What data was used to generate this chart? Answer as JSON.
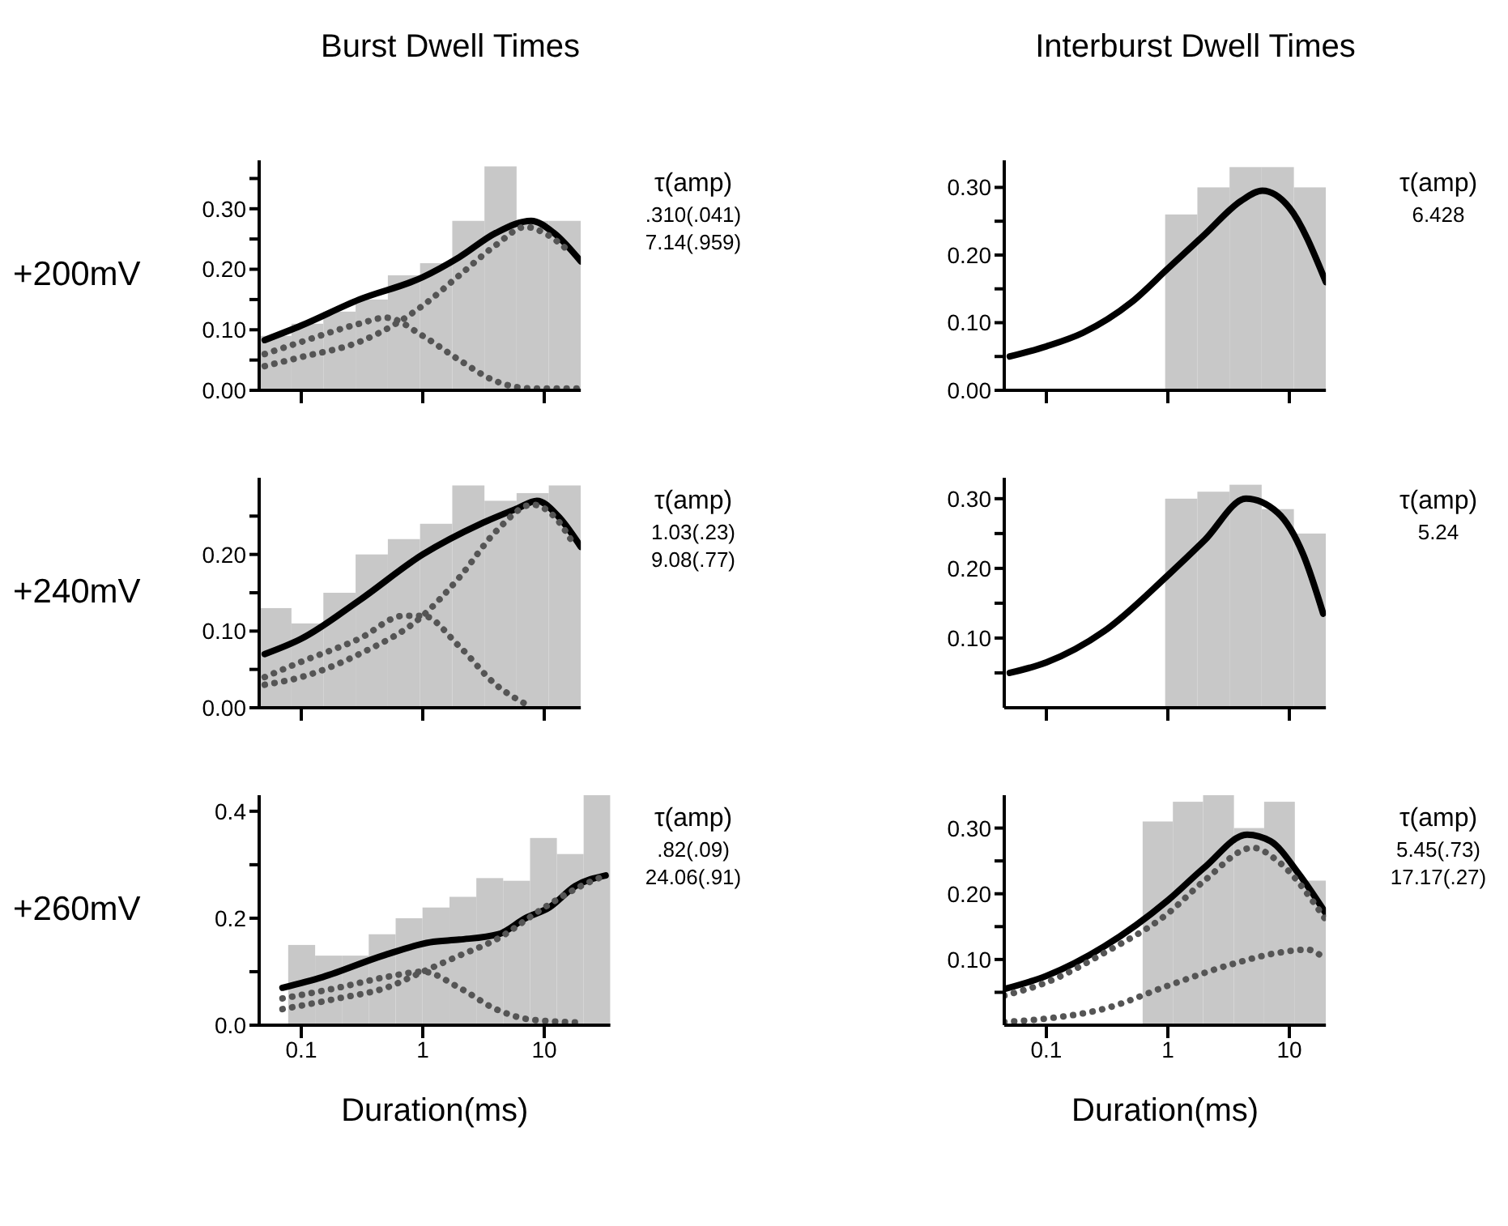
{
  "chart_data": [
    {
      "type": "histogram",
      "title": "Burst Dwell Times",
      "ylabel": "+200mV",
      "log": "x",
      "tick_labels": "y",
      "color": "#c8c8c8",
      "bins": [
        0.045,
        0.083,
        0.152,
        0.28,
        0.516,
        0.95,
        1.75,
        3.22,
        5.92,
        10.9,
        20
      ],
      "values": [
        0.09,
        0.11,
        0.13,
        0.15,
        0.19,
        0.21,
        0.28,
        0.37,
        0.28,
        0.28
      ],
      "series": [
        {
          "type": "line",
          "line_style": "solid",
          "color": "#000000",
          "x": [
            0.05,
            0.1,
            0.3,
            1,
            2,
            4,
            7.8,
            12,
            20
          ],
          "values": [
            0.083,
            0.107,
            0.15,
            0.187,
            0.22,
            0.26,
            0.28,
            0.26,
            0.213
          ]
        },
        {
          "type": "line",
          "line_style": "dotted",
          "color": "#555555",
          "x": [
            0.05,
            0.1,
            0.3,
            0.5,
            1,
            2,
            4,
            8,
            20
          ],
          "values": [
            0.06,
            0.08,
            0.11,
            0.12,
            0.09,
            0.05,
            0.015,
            0.003,
            0.003
          ]
        },
        {
          "type": "line",
          "line_style": "dotted",
          "color": "#555555",
          "x": [
            0.05,
            0.1,
            0.3,
            0.6,
            1,
            2,
            4,
            7,
            10,
            16
          ],
          "values": [
            0.04,
            0.055,
            0.08,
            0.11,
            0.14,
            0.19,
            0.24,
            0.27,
            0.26,
            0.23
          ]
        }
      ],
      "xlim": [
        0.045,
        20
      ],
      "xticks": [
        {
          "value": 0.1,
          "label": null
        },
        {
          "value": 1,
          "label": null
        },
        {
          "value": 10,
          "label": null
        }
      ],
      "ylim": [
        0,
        0.38
      ],
      "yticks": [
        {
          "value": 0,
          "label": "0.00"
        },
        {
          "value": 0.05,
          "label": null
        },
        {
          "value": 0.1,
          "label": "0.10"
        },
        {
          "value": 0.15,
          "label": null
        },
        {
          "value": 0.2,
          "label": "0.20"
        },
        {
          "value": 0.25,
          "label": null
        },
        {
          "value": 0.3,
          "label": "0.30"
        },
        {
          "value": 0.35,
          "label": null
        }
      ],
      "annotations": [
        "τ(amp)",
        ".310(.041)",
        "7.14(.959)"
      ]
    },
    {
      "type": "histogram",
      "title": "Interburst Dwell Times",
      "log": "x",
      "tick_labels": "y",
      "color": "#c8c8c8",
      "bins": [
        0.045,
        0.083,
        0.152,
        0.28,
        0.516,
        0.95,
        1.75,
        3.22,
        5.92,
        10.9,
        20
      ],
      "values": [
        0,
        0,
        0,
        0,
        0,
        0.26,
        0.3,
        0.33,
        0.33,
        0.3
      ],
      "series": [
        {
          "type": "line",
          "line_style": "solid",
          "color": "#000000",
          "x": [
            0.05,
            0.1,
            0.2,
            0.5,
            1,
            2,
            4,
            6,
            10,
            20
          ],
          "values": [
            0.05,
            0.065,
            0.085,
            0.13,
            0.18,
            0.23,
            0.28,
            0.295,
            0.27,
            0.16
          ]
        }
      ],
      "xlim": [
        0.045,
        20
      ],
      "xticks": [
        {
          "value": 0.1,
          "label": null
        },
        {
          "value": 1,
          "label": null
        },
        {
          "value": 10,
          "label": null
        }
      ],
      "ylim": [
        0,
        0.34
      ],
      "yticks": [
        {
          "value": 0,
          "label": "0.00"
        },
        {
          "value": 0.05,
          "label": null
        },
        {
          "value": 0.1,
          "label": "0.10"
        },
        {
          "value": 0.15,
          "label": null
        },
        {
          "value": 0.2,
          "label": "0.20"
        },
        {
          "value": 0.25,
          "label": null
        },
        {
          "value": 0.3,
          "label": "0.30"
        }
      ],
      "annotations": [
        "τ(amp)",
        "6.428"
      ]
    },
    {
      "type": "histogram",
      "ylabel": "+240mV",
      "log": "x",
      "tick_labels": "y",
      "color": "#c8c8c8",
      "bins": [
        0.045,
        0.083,
        0.152,
        0.28,
        0.516,
        0.95,
        1.75,
        3.22,
        5.92,
        10.9,
        20
      ],
      "values": [
        0.13,
        0.11,
        0.15,
        0.2,
        0.22,
        0.24,
        0.29,
        0.27,
        0.28,
        0.29
      ],
      "series": [
        {
          "type": "line",
          "line_style": "solid",
          "color": "#000000",
          "x": [
            0.05,
            0.1,
            0.3,
            1,
            3,
            6,
            8.7,
            13,
            20
          ],
          "values": [
            0.07,
            0.09,
            0.14,
            0.2,
            0.24,
            0.26,
            0.27,
            0.25,
            0.21
          ]
        },
        {
          "type": "line",
          "line_style": "dotted",
          "color": "#555555",
          "x": [
            0.05,
            0.1,
            0.3,
            0.7,
            1,
            2,
            4,
            7
          ],
          "values": [
            0.04,
            0.06,
            0.09,
            0.12,
            0.12,
            0.08,
            0.03,
            0.005
          ]
        },
        {
          "type": "line",
          "line_style": "dotted",
          "color": "#555555",
          "x": [
            0.05,
            0.1,
            0.3,
            1,
            2,
            4,
            8,
            12,
            18
          ],
          "values": [
            0.03,
            0.04,
            0.07,
            0.12,
            0.17,
            0.23,
            0.265,
            0.25,
            0.21
          ]
        }
      ],
      "xlim": [
        0.045,
        20
      ],
      "xticks": [
        {
          "value": 0.1,
          "label": null
        },
        {
          "value": 1,
          "label": null
        },
        {
          "value": 10,
          "label": null
        }
      ],
      "ylim": [
        0,
        0.3
      ],
      "yticks": [
        {
          "value": 0,
          "label": "0.00"
        },
        {
          "value": 0.05,
          "label": null
        },
        {
          "value": 0.1,
          "label": "0.10"
        },
        {
          "value": 0.15,
          "label": null
        },
        {
          "value": 0.2,
          "label": "0.20"
        },
        {
          "value": 0.25,
          "label": null
        }
      ],
      "annotations": [
        "τ(amp)",
        "1.03(.23)",
        "9.08(.77)"
      ]
    },
    {
      "type": "histogram",
      "log": "x",
      "tick_labels": "y",
      "color": "#c8c8c8",
      "bins": [
        0.045,
        0.083,
        0.152,
        0.28,
        0.516,
        0.95,
        1.75,
        3.22,
        5.92,
        10.9,
        20
      ],
      "values": [
        0,
        0,
        0,
        0,
        0,
        0.3,
        0.31,
        0.32,
        0.285,
        0.25
      ],
      "series": [
        {
          "type": "line",
          "line_style": "solid",
          "color": "#000000",
          "x": [
            0.05,
            0.1,
            0.3,
            1,
            2,
            4.4,
            8,
            13,
            19
          ],
          "values": [
            0.05,
            0.065,
            0.11,
            0.19,
            0.24,
            0.3,
            0.28,
            0.22,
            0.135
          ]
        }
      ],
      "xlim": [
        0.045,
        20
      ],
      "xticks": [
        {
          "value": 0.1,
          "label": null
        },
        {
          "value": 1,
          "label": null
        },
        {
          "value": 10,
          "label": null
        }
      ],
      "ylim": [
        0,
        0.33
      ],
      "yticks": [
        {
          "value": 0.05,
          "label": null
        },
        {
          "value": 0.1,
          "label": "0.10"
        },
        {
          "value": 0.15,
          "label": null
        },
        {
          "value": 0.2,
          "label": "0.20"
        },
        {
          "value": 0.25,
          "label": null
        },
        {
          "value": 0.3,
          "label": "0.30"
        }
      ],
      "annotations": [
        "τ(amp)",
        "5.24"
      ]
    },
    {
      "type": "histogram",
      "ylabel": "+260mV",
      "xlabel": "Duration(ms)",
      "log": "x",
      "color": "#c8c8c8",
      "bins": [
        0.078,
        0.13,
        0.216,
        0.359,
        0.598,
        0.995,
        1.66,
        2.76,
        4.59,
        7.64,
        12.7,
        21.1,
        35
      ],
      "values": [
        0.15,
        0.13,
        0.13,
        0.17,
        0.2,
        0.22,
        0.24,
        0.275,
        0.27,
        0.35,
        0.32,
        0.43
      ],
      "series": [
        {
          "type": "line",
          "line_style": "solid",
          "color": "#000000",
          "x": [
            0.07,
            0.15,
            0.47,
            1.15,
            2,
            4.2,
            7,
            11,
            18,
            32
          ],
          "values": [
            0.07,
            0.09,
            0.13,
            0.155,
            0.16,
            0.17,
            0.2,
            0.22,
            0.26,
            0.28
          ]
        },
        {
          "type": "line",
          "line_style": "dotted",
          "color": "#555555",
          "x": [
            0.07,
            0.2,
            0.5,
            1,
            2,
            4,
            8,
            20
          ],
          "values": [
            0.05,
            0.07,
            0.09,
            0.1,
            0.07,
            0.03,
            0.01,
            0.005
          ]
        },
        {
          "type": "line",
          "line_style": "dotted",
          "color": "#555555",
          "x": [
            0.07,
            0.2,
            0.5,
            1,
            2,
            4,
            10,
            20,
            32
          ],
          "values": [
            0.03,
            0.05,
            0.07,
            0.1,
            0.13,
            0.16,
            0.22,
            0.26,
            0.28
          ]
        }
      ],
      "xlim": [
        0.045,
        35
      ],
      "xticks": [
        0.1,
        1,
        10
      ],
      "ylim": [
        0,
        0.43
      ],
      "yticks": [
        {
          "value": 0,
          "label": "0.0"
        },
        {
          "value": 0.1,
          "label": null
        },
        {
          "value": 0.2,
          "label": "0.2"
        },
        {
          "value": 0.3,
          "label": null
        },
        {
          "value": 0.4,
          "label": "0.4"
        }
      ],
      "annotations": [
        "τ(amp)",
        ".82(.09)",
        "24.06(.91)"
      ]
    },
    {
      "type": "histogram",
      "xlabel": "Duration(ms)",
      "log": "x",
      "color": "#c8c8c8",
      "bins": [
        0.62,
        1.1,
        1.95,
        3.5,
        6.2,
        11.1,
        20
      ],
      "values": [
        0.31,
        0.34,
        0.35,
        0.3,
        0.34,
        0.22
      ],
      "series": [
        {
          "type": "line",
          "line_style": "solid",
          "color": "#000000",
          "x": [
            0.045,
            0.1,
            0.3,
            1,
            2,
            4.5,
            7,
            12,
            20
          ],
          "values": [
            0.055,
            0.075,
            0.12,
            0.19,
            0.24,
            0.29,
            0.28,
            0.23,
            0.17
          ]
        },
        {
          "type": "line",
          "line_style": "dotted",
          "color": "#555555",
          "x": [
            0.045,
            0.1,
            0.3,
            1,
            2,
            5,
            8,
            20
          ],
          "values": [
            0.045,
            0.065,
            0.11,
            0.17,
            0.22,
            0.27,
            0.25,
            0.16
          ]
        },
        {
          "type": "line",
          "line_style": "dotted",
          "color": "#555555",
          "x": [
            0.045,
            0.1,
            0.3,
            1,
            3,
            8,
            14,
            20
          ],
          "values": [
            0.005,
            0.01,
            0.025,
            0.06,
            0.09,
            0.11,
            0.115,
            0.1
          ]
        }
      ],
      "xlim": [
        0.045,
        20
      ],
      "xticks": [
        0.1,
        1,
        10
      ],
      "ylim": [
        0,
        0.35
      ],
      "yticks": [
        {
          "value": 0.05,
          "label": null
        },
        {
          "value": 0.1,
          "label": "0.10"
        },
        {
          "value": 0.15,
          "label": null
        },
        {
          "value": 0.2,
          "label": "0.20"
        },
        {
          "value": 0.25,
          "label": null
        },
        {
          "value": 0.3,
          "label": "0.30"
        }
      ],
      "annotations": [
        "τ(amp)",
        "5.45(.73)",
        "17.17(.27)"
      ]
    }
  ]
}
